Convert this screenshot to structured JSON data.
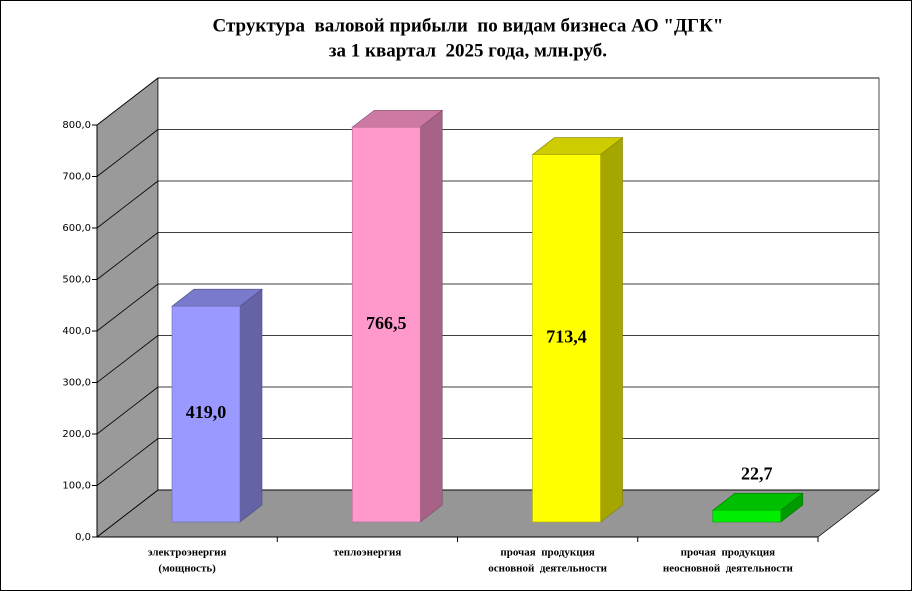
{
  "chart_data": {
    "type": "bar3d",
    "title": "Структура  валовой прибыли  по видам бизнеса АО \"ДГК\"",
    "subtitle": "за 1 квартал  2025 года, млн.руб.",
    "categories": [
      [
        "электроэнергия",
        "(мощность)"
      ],
      [
        "теплоэнергия"
      ],
      [
        "прочая  продукция",
        "основной  деятельности"
      ],
      [
        "прочая  продукция",
        "неосновной  деятельности"
      ]
    ],
    "values": [
      419.0,
      766.5,
      713.4,
      22.7
    ],
    "value_labels": [
      "419,0",
      "766,5",
      "713,4",
      "22,7"
    ],
    "colors": [
      "#9999ff",
      "#ff99cc",
      "#ffff00",
      "#00ee00"
    ],
    "ylim": [
      0,
      800
    ],
    "yticks": [
      {
        "value": 0,
        "label": "0,0"
      },
      {
        "value": 100,
        "label": "100,0"
      },
      {
        "value": 200,
        "label": "200,0"
      },
      {
        "value": 300,
        "label": "300,0"
      },
      {
        "value": 400,
        "label": "400,0"
      },
      {
        "value": 500,
        "label": "500,0"
      },
      {
        "value": 600,
        "label": "600,0"
      },
      {
        "value": 700,
        "label": "700,0"
      },
      {
        "value": 800,
        "label": "800,0"
      }
    ],
    "grid": true
  }
}
